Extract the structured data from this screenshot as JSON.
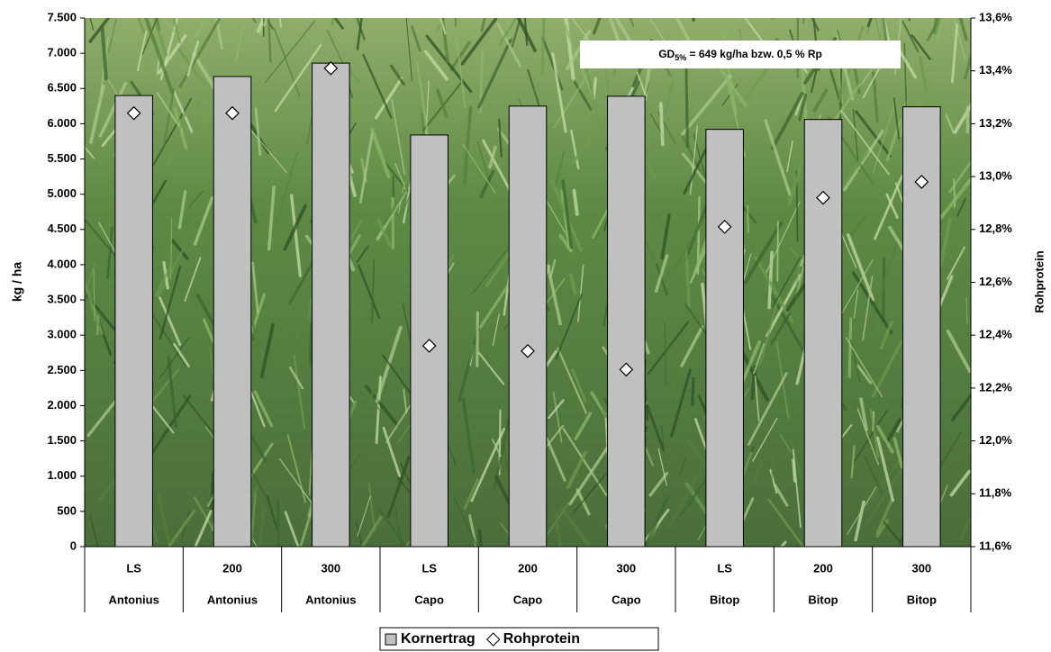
{
  "chart_data": {
    "type": "bar",
    "categories": [
      [
        "LS",
        "Antonius"
      ],
      [
        "200",
        "Antonius"
      ],
      [
        "300",
        "Antonius"
      ],
      [
        "LS",
        "Capo"
      ],
      [
        "200",
        "Capo"
      ],
      [
        "300",
        "Capo"
      ],
      [
        "LS",
        "Bitop"
      ],
      [
        "200",
        "Bitop"
      ],
      [
        "300",
        "Bitop"
      ]
    ],
    "series": [
      {
        "name": "Kornertrag",
        "type": "bar",
        "color": "#c0c0c0",
        "values": [
          6400,
          6670,
          6860,
          5840,
          6250,
          6390,
          5920,
          6060,
          6240
        ]
      },
      {
        "name": "Rohprotein",
        "type": "scatter",
        "axis": "y2",
        "color": "#ffffff",
        "marker": "diamond",
        "values": [
          13.24,
          13.24,
          13.41,
          12.36,
          12.34,
          12.27,
          12.81,
          12.92,
          12.98
        ]
      }
    ],
    "ylabel": "kg / ha",
    "y2label": "Rohprotein",
    "ylim": [
      0,
      7500
    ],
    "yticks": [
      0,
      500,
      {
        "value": 1000,
        "label": "1.000"
      },
      {
        "value": 1500,
        "label": "1.500"
      },
      {
        "value": 2000,
        "label": "2.000"
      },
      {
        "value": 2500,
        "label": "2.500"
      },
      {
        "value": 3000,
        "label": "3.000"
      },
      {
        "value": 3500,
        "label": "3.500"
      },
      {
        "value": 4000,
        "label": "4.000"
      },
      {
        "value": 4500,
        "label": "4.500"
      },
      {
        "value": 5000,
        "label": "5.000"
      },
      {
        "value": 5500,
        "label": "5.500"
      },
      {
        "value": 6000,
        "label": "6.000"
      },
      {
        "value": 6500,
        "label": "6.500"
      },
      {
        "value": 7000,
        "label": "7.000"
      },
      {
        "value": 7500,
        "label": "7.500"
      }
    ],
    "y2lim": [
      11.6,
      13.6
    ],
    "y2ticks": [
      {
        "value": 11.6,
        "label": "11,6%"
      },
      {
        "value": 11.8,
        "label": "11,8%"
      },
      {
        "value": 12.0,
        "label": "12,0%"
      },
      {
        "value": 12.2,
        "label": "12,2%"
      },
      {
        "value": 12.4,
        "label": "12,4%"
      },
      {
        "value": 12.6,
        "label": "12,6%"
      },
      {
        "value": 12.8,
        "label": "12,8%"
      },
      {
        "value": 13.0,
        "label": "13,0%"
      },
      {
        "value": 13.2,
        "label": "13,2%"
      },
      {
        "value": 13.4,
        "label": "13,4%"
      },
      {
        "value": 13.6,
        "label": "13,6%"
      }
    ],
    "annotation": {
      "main": "GD",
      "sub": "5%",
      "rest": " = 649 kg/ha bzw. 0,5 % Rp"
    },
    "legend": "bottom"
  }
}
